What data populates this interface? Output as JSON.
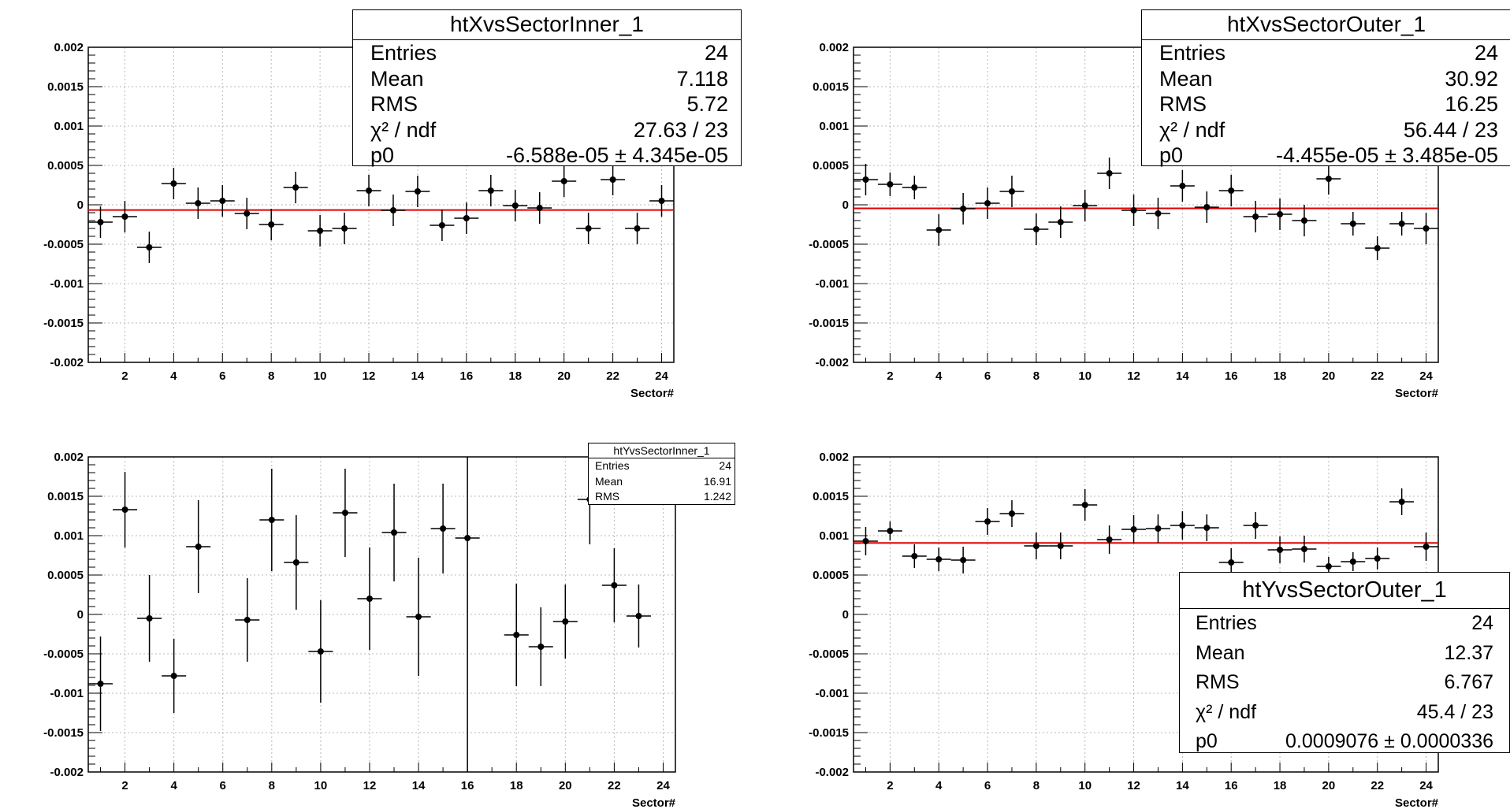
{
  "chart_data": [
    {
      "type": "scatter",
      "title": "",
      "xlabel": "Sector#",
      "ylabel": "",
      "xlim": [
        0.5,
        24.5
      ],
      "ylim": [
        -0.002,
        0.002
      ],
      "grid": true,
      "x_ticks": [
        "2",
        "4",
        "6",
        "8",
        "10",
        "12",
        "14",
        "16",
        "18",
        "20",
        "22",
        "24"
      ],
      "y_ticks": [
        "0.002",
        "0.0015",
        "0.001",
        "0.0005",
        "0",
        "-0.0005",
        "-0.001",
        "-0.0015",
        "-0.002"
      ],
      "fit_value": -6.588e-05,
      "x": [
        1,
        2,
        3,
        4,
        5,
        6,
        7,
        8,
        9,
        10,
        11,
        12,
        13,
        14,
        15,
        16,
        17,
        18,
        19,
        20,
        21,
        22,
        23,
        24
      ],
      "y": [
        -0.00022,
        -0.00015,
        -0.00054,
        0.00027,
        2e-05,
        5e-05,
        -0.00011,
        -0.00025,
        0.00022,
        -0.00033,
        -0.0003,
        0.00018,
        -7e-05,
        0.00017,
        -0.00026,
        -0.00017,
        0.00018,
        -1e-05,
        -4e-05,
        0.0003,
        -0.0003,
        0.00032,
        -0.0003,
        5e-05
      ],
      "yerr": [
        0.0002,
        0.0002,
        0.0002,
        0.0002,
        0.0002,
        0.0002,
        0.0002,
        0.0002,
        0.0002,
        0.0002,
        0.0002,
        0.0002,
        0.0002,
        0.0002,
        0.0002,
        0.0002,
        0.0002,
        0.0002,
        0.0002,
        0.0002,
        0.0002,
        0.0002,
        0.0002,
        0.0002
      ],
      "stats": {
        "name": "htXvsSectorInner_1",
        "rows": [
          {
            "label": "Entries",
            "value": "24"
          },
          {
            "label": "Mean",
            "value": "7.118"
          },
          {
            "label": "RMS",
            "value": "5.72"
          },
          {
            "label": "χ² / ndf",
            "value": "27.63 / 23"
          },
          {
            "label": "p0",
            "value": "-6.588e-05 ± 4.345e-05"
          }
        ]
      }
    },
    {
      "type": "scatter",
      "title": "",
      "xlabel": "Sector#",
      "ylabel": "",
      "xlim": [
        0.5,
        24.5
      ],
      "ylim": [
        -0.002,
        0.002
      ],
      "grid": true,
      "x_ticks": [
        "2",
        "4",
        "6",
        "8",
        "10",
        "12",
        "14",
        "16",
        "18",
        "20",
        "22",
        "24"
      ],
      "y_ticks": [
        "0.002",
        "0.0015",
        "0.001",
        "0.0005",
        "0",
        "-0.0005",
        "-0.001",
        "-0.0015",
        "-0.002"
      ],
      "fit_value": -4.455e-05,
      "x": [
        1,
        2,
        3,
        4,
        5,
        6,
        7,
        8,
        9,
        10,
        11,
        12,
        13,
        14,
        15,
        16,
        17,
        18,
        19,
        20,
        21,
        22,
        23,
        24
      ],
      "y": [
        0.00032,
        0.00026,
        0.00022,
        -0.00032,
        -5e-05,
        2e-05,
        0.00017,
        -0.00031,
        -0.00022,
        -1e-05,
        0.0004,
        -7e-05,
        -0.00011,
        0.00024,
        -3e-05,
        0.00018,
        -0.00015,
        -0.00012,
        -0.0002,
        0.00033,
        -0.00024,
        -0.00055,
        -0.00024,
        -0.0003
      ],
      "yerr": [
        0.0002,
        0.00015,
        0.00015,
        0.0002,
        0.0002,
        0.0002,
        0.0002,
        0.0002,
        0.0002,
        0.0002,
        0.0002,
        0.0002,
        0.0002,
        0.0002,
        0.0002,
        0.0002,
        0.0002,
        0.0002,
        0.0002,
        0.0002,
        0.00015,
        0.00015,
        0.00015,
        0.0002
      ],
      "stats": {
        "name": "htXvsSectorOuter_1",
        "rows": [
          {
            "label": "Entries",
            "value": "24"
          },
          {
            "label": "Mean",
            "value": "30.92"
          },
          {
            "label": "RMS",
            "value": "16.25"
          },
          {
            "label": "χ² / ndf",
            "value": "56.44 / 23"
          },
          {
            "label": "p0",
            "value": "-4.455e-05 ± 3.485e-05"
          }
        ]
      }
    },
    {
      "type": "scatter",
      "title": "",
      "xlabel": "Sector#",
      "ylabel": "",
      "xlim": [
        0.5,
        24.5
      ],
      "ylim": [
        -0.002,
        0.002
      ],
      "grid": true,
      "x_ticks": [
        "2",
        "4",
        "6",
        "8",
        "10",
        "12",
        "14",
        "16",
        "18",
        "20",
        "22",
        "24"
      ],
      "y_ticks": [
        "0.002",
        "0.0015",
        "0.001",
        "0.0005",
        "0",
        "-0.0005",
        "-0.001",
        "-0.0015",
        "-0.002"
      ],
      "x": [
        1,
        2,
        3,
        4,
        5,
        7,
        8,
        9,
        10,
        11,
        12,
        13,
        14,
        15,
        16,
        18,
        19,
        20,
        21,
        22,
        23
      ],
      "y": [
        -0.00088,
        0.00133,
        -5e-05,
        -0.00078,
        0.00086,
        -7e-05,
        0.0012,
        0.00066,
        -0.00047,
        0.00129,
        0.0002,
        0.00104,
        -3e-05,
        0.00109,
        0.00097,
        -0.00026,
        -0.00041,
        -9e-05,
        0.00146,
        0.00037,
        -2e-05
      ],
      "yerr": [
        0.0006,
        0.00048,
        0.00055,
        0.00047,
        0.00059,
        0.00053,
        0.00065,
        0.0006,
        0.00065,
        0.00056,
        0.00065,
        0.00062,
        0.00075,
        0.00057,
        0.003,
        0.00065,
        0.0005,
        0.00047,
        0.00057,
        0.00047,
        0.0004
      ],
      "stats": {
        "name": "htYvsSectorInner_1",
        "rows": [
          {
            "label": "Entries",
            "value": "24"
          },
          {
            "label": "Mean",
            "value": "16.91"
          },
          {
            "label": "RMS",
            "value": "1.242"
          }
        ]
      }
    },
    {
      "type": "scatter",
      "title": "",
      "xlabel": "Sector#",
      "ylabel": "",
      "xlim": [
        0.5,
        24.5
      ],
      "ylim": [
        -0.002,
        0.002
      ],
      "grid": true,
      "x_ticks": [
        "2",
        "4",
        "6",
        "8",
        "10",
        "12",
        "14",
        "16",
        "18",
        "20",
        "22",
        "24"
      ],
      "y_ticks": [
        "0.002",
        "0.0015",
        "0.001",
        "0.0005",
        "0",
        "-0.0005",
        "-0.001",
        "-0.0015",
        "-0.002"
      ],
      "fit_value": 0.0009076,
      "x": [
        1,
        2,
        3,
        4,
        5,
        6,
        7,
        8,
        9,
        10,
        11,
        12,
        13,
        14,
        15,
        16,
        17,
        18,
        19,
        20,
        21,
        22,
        23,
        24
      ],
      "y": [
        0.00093,
        0.00106,
        0.00074,
        0.0007,
        0.00069,
        0.00118,
        0.00128,
        0.00087,
        0.00087,
        0.00139,
        0.00095,
        0.00108,
        0.00109,
        0.00113,
        0.0011,
        0.00066,
        0.00113,
        0.00082,
        0.00083,
        0.00061,
        0.00067,
        0.00071,
        0.00143,
        0.00086
      ],
      "yerr": [
        0.00018,
        0.00012,
        0.00015,
        0.00015,
        0.00017,
        0.00017,
        0.00017,
        0.00017,
        0.00017,
        0.0002,
        0.00018,
        0.00018,
        0.00018,
        0.00018,
        0.00017,
        0.00018,
        0.00017,
        0.00017,
        0.00017,
        0.00012,
        0.00012,
        0.00014,
        0.00017,
        0.00018
      ],
      "stats": {
        "name": "htYvsSectorOuter_1",
        "rows": [
          {
            "label": "Entries",
            "value": "24"
          },
          {
            "label": "Mean",
            "value": "12.37"
          },
          {
            "label": "RMS",
            "value": "6.767"
          },
          {
            "label": "χ² / ndf",
            "value": "45.4 / 23"
          },
          {
            "label": "p0",
            "value": "0.0009076 ± 0.0000336"
          }
        ]
      }
    }
  ]
}
